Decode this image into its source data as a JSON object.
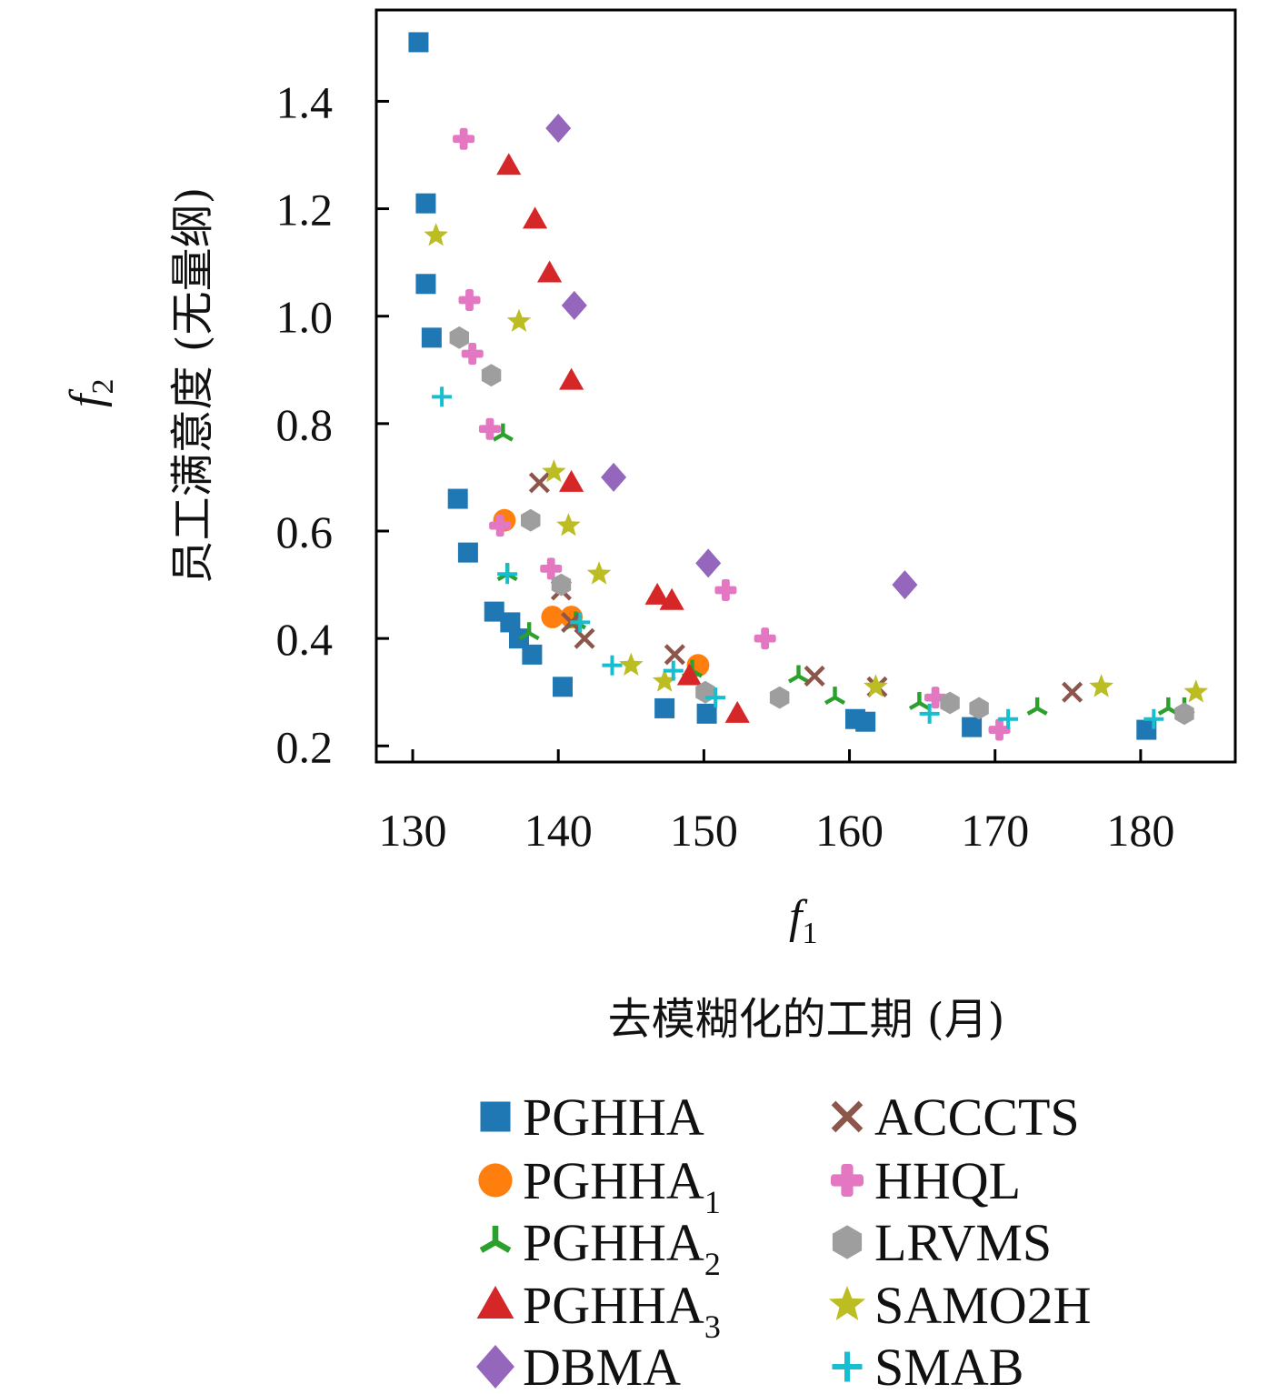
{
  "chart_data": {
    "type": "scatter",
    "xlabel_symbol": "f",
    "xlabel_symbol_sub": "1",
    "xlabel": "去模糊化的工期 (月)",
    "ylabel_symbol": "f",
    "ylabel_symbol_sub": "2",
    "ylabel": "员工满意度 (无量纲)",
    "xlim": [
      127.5,
      186.5
    ],
    "ylim": [
      0.17,
      1.57
    ],
    "xticks": [
      130,
      140,
      150,
      160,
      170,
      180
    ],
    "yticks": [
      0.2,
      0.4,
      0.6,
      0.8,
      1.0,
      1.2,
      1.4
    ],
    "xtick_labels": [
      "130",
      "140",
      "150",
      "160",
      "170",
      "180"
    ],
    "ytick_labels": [
      "0.2",
      "0.4",
      "0.6",
      "0.8",
      "1.0",
      "1.2",
      "1.4"
    ],
    "grid": false,
    "legend_position": "bottom, two columns",
    "series": [
      {
        "name": "PGHHA",
        "sub": "",
        "marker": "square",
        "color": "#1f77b4",
        "points": [
          [
            130.4,
            1.51
          ],
          [
            130.9,
            1.21
          ],
          [
            130.9,
            1.06
          ],
          [
            131.3,
            0.96
          ],
          [
            133.1,
            0.66
          ],
          [
            133.8,
            0.56
          ],
          [
            135.6,
            0.45
          ],
          [
            136.7,
            0.43
          ],
          [
            137.3,
            0.4
          ],
          [
            138.2,
            0.37
          ],
          [
            140.3,
            0.31
          ],
          [
            147.3,
            0.27
          ],
          [
            150.2,
            0.26
          ],
          [
            160.4,
            0.25
          ],
          [
            161.1,
            0.245
          ],
          [
            168.4,
            0.235
          ],
          [
            180.4,
            0.23
          ]
        ]
      },
      {
        "name": "PGHHA",
        "sub": "1",
        "marker": "circle",
        "color": "#ff7f0e",
        "points": [
          [
            136.3,
            0.62
          ],
          [
            139.6,
            0.44
          ],
          [
            140.9,
            0.44
          ],
          [
            149.6,
            0.35
          ]
        ]
      },
      {
        "name": "PGHHA",
        "sub": "2",
        "marker": "tri",
        "color": "#2ca02c",
        "points": [
          [
            136.2,
            0.78
          ],
          [
            136.5,
            0.52
          ],
          [
            138.0,
            0.41
          ],
          [
            141.2,
            0.43
          ],
          [
            149.2,
            0.34
          ],
          [
            156.5,
            0.33
          ],
          [
            159.0,
            0.29
          ],
          [
            164.8,
            0.28
          ],
          [
            172.9,
            0.27
          ],
          [
            181.9,
            0.27
          ],
          [
            183.0,
            0.27
          ]
        ]
      },
      {
        "name": "PGHHA",
        "sub": "3",
        "marker": "triangle",
        "color": "#d62728",
        "points": [
          [
            136.6,
            1.28
          ],
          [
            138.4,
            1.18
          ],
          [
            139.4,
            1.08
          ],
          [
            140.9,
            0.88
          ],
          [
            140.9,
            0.69
          ],
          [
            146.8,
            0.48
          ],
          [
            147.8,
            0.47
          ],
          [
            149.0,
            0.33
          ],
          [
            152.3,
            0.26
          ]
        ]
      },
      {
        "name": "DBMA",
        "sub": "",
        "marker": "diamond",
        "color": "#9467bd",
        "points": [
          [
            140.0,
            1.35
          ],
          [
            141.1,
            1.02
          ],
          [
            143.8,
            0.7
          ],
          [
            150.3,
            0.54
          ],
          [
            163.8,
            0.5
          ]
        ]
      },
      {
        "name": "ACCCTS",
        "sub": "",
        "marker": "x",
        "color": "#8c564b",
        "points": [
          [
            138.7,
            0.69
          ],
          [
            140.2,
            0.49
          ],
          [
            140.9,
            0.43
          ],
          [
            141.8,
            0.4
          ],
          [
            148.0,
            0.37
          ],
          [
            157.6,
            0.33
          ],
          [
            161.9,
            0.31
          ],
          [
            175.3,
            0.3
          ]
        ]
      },
      {
        "name": "HHQL",
        "sub": "",
        "marker": "plus",
        "color": "#e377c2",
        "points": [
          [
            133.5,
            1.33
          ],
          [
            133.9,
            1.03
          ],
          [
            134.1,
            0.93
          ],
          [
            135.3,
            0.79
          ],
          [
            136.0,
            0.61
          ],
          [
            139.5,
            0.53
          ],
          [
            151.5,
            0.49
          ],
          [
            154.2,
            0.4
          ],
          [
            165.9,
            0.29
          ],
          [
            170.3,
            0.23
          ]
        ]
      },
      {
        "name": "LRVMS",
        "sub": "",
        "marker": "hexagon",
        "color": "#9e9e9e",
        "points": [
          [
            133.2,
            0.96
          ],
          [
            135.4,
            0.89
          ],
          [
            138.1,
            0.62
          ],
          [
            140.2,
            0.5
          ],
          [
            150.1,
            0.3
          ],
          [
            155.2,
            0.29
          ],
          [
            166.9,
            0.28
          ],
          [
            168.9,
            0.27
          ],
          [
            183.0,
            0.26
          ]
        ]
      },
      {
        "name": "SAMO2H",
        "sub": "",
        "marker": "star",
        "color": "#bcbd22",
        "points": [
          [
            131.6,
            1.15
          ],
          [
            137.3,
            0.99
          ],
          [
            139.7,
            0.71
          ],
          [
            140.7,
            0.61
          ],
          [
            142.8,
            0.52
          ],
          [
            145.0,
            0.35
          ],
          [
            147.3,
            0.32
          ],
          [
            161.8,
            0.31
          ],
          [
            177.3,
            0.31
          ],
          [
            183.8,
            0.3
          ]
        ]
      },
      {
        "name": "SMAB",
        "sub": "",
        "marker": "plus-thin",
        "color": "#17becf",
        "points": [
          [
            132.0,
            0.85
          ],
          [
            136.5,
            0.52
          ],
          [
            141.5,
            0.43
          ],
          [
            143.7,
            0.35
          ],
          [
            147.9,
            0.34
          ],
          [
            150.8,
            0.29
          ],
          [
            165.5,
            0.26
          ],
          [
            170.9,
            0.25
          ],
          [
            180.9,
            0.25
          ]
        ]
      }
    ]
  }
}
